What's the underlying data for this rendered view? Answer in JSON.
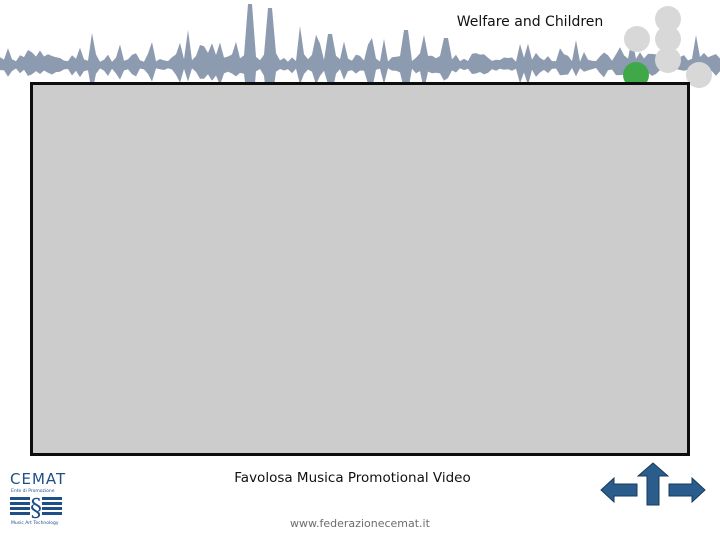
{
  "header": {
    "title": "Welfare and Children"
  },
  "main": {
    "caption": "Favolosa Musica Promotional Video"
  },
  "footer": {
    "website": "www.federazionecemat.it"
  },
  "logo": {
    "name": "CEMAT",
    "subtitle": "Ente di Promozione",
    "tagline": "Music Art Technology"
  },
  "navigation": {
    "back_icon": "arrow-left-icon",
    "up_icon": "arrow-up-icon",
    "forward_icon": "arrow-right-icon"
  },
  "colors": {
    "waveform": "#8d9bb0",
    "frame_fill": "#cccccc",
    "frame_border": "#0d0d0d",
    "accent_green": "#3fa94a",
    "dot_gray": "#d8d8d8",
    "nav_blue": "#2a5d8c",
    "logo_blue": "#1d5088"
  }
}
